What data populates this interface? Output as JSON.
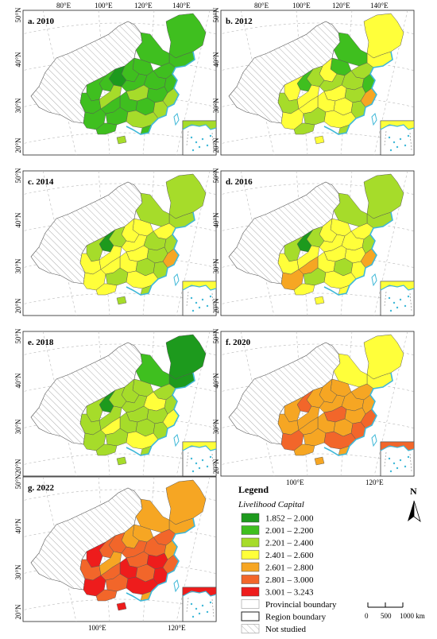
{
  "colors": {
    "water": "#3fb8d8",
    "not_studied_fill": "#ffffff",
    "hatch": "#9a9a9a",
    "boundary": "#555555",
    "graticule": "#b8b8b8"
  },
  "panels": [
    {
      "label": "a. 2010",
      "classes": [
        1,
        1,
        1,
        1,
        1,
        0,
        1,
        1,
        1,
        2,
        1,
        1,
        1,
        2,
        1,
        2,
        1,
        1,
        2,
        1,
        1,
        1,
        2,
        1,
        1,
        2
      ]
    },
    {
      "label": "b. 2012",
      "classes": [
        3,
        1,
        1,
        2,
        3,
        2,
        1,
        3,
        2,
        3,
        2,
        2,
        1,
        3,
        2,
        4,
        3,
        3,
        2,
        3,
        3,
        2,
        3,
        2,
        2,
        3
      ]
    },
    {
      "label": "c. 2014",
      "classes": [
        2,
        2,
        3,
        3,
        3,
        2,
        0,
        2,
        3,
        3,
        3,
        2,
        2,
        3,
        2,
        4,
        3,
        2,
        2,
        3,
        3,
        2,
        3,
        3,
        2,
        2
      ]
    },
    {
      "label": "d. 2016",
      "classes": [
        2,
        2,
        3,
        3,
        3,
        2,
        0,
        2,
        3,
        3,
        3,
        3,
        2,
        3,
        3,
        4,
        3,
        2,
        3,
        4,
        4,
        2,
        3,
        3,
        3,
        3
      ]
    },
    {
      "label": "e. 2018",
      "classes": [
        0,
        1,
        2,
        2,
        2,
        2,
        0,
        2,
        2,
        2,
        2,
        3,
        2,
        2,
        2,
        3,
        2,
        2,
        2,
        3,
        2,
        2,
        3,
        2,
        2,
        2
      ]
    },
    {
      "label": "f. 2020",
      "classes": [
        3,
        3,
        4,
        4,
        4,
        4,
        5,
        4,
        4,
        4,
        4,
        4,
        4,
        5,
        4,
        5,
        4,
        4,
        5,
        4,
        5,
        4,
        5,
        4,
        4,
        4
      ]
    },
    {
      "label": "g. 2022",
      "classes": [
        4,
        4,
        4,
        5,
        4,
        5,
        5,
        6,
        5,
        4,
        5,
        5,
        4,
        5,
        6,
        5,
        6,
        5,
        6,
        5,
        6,
        5,
        6,
        5,
        4,
        6
      ]
    }
  ],
  "axes": {
    "lon_top": [
      "80°E",
      "100°E",
      "120°E",
      "140°E"
    ],
    "lon_bottom": [
      "100°E",
      "120°E"
    ],
    "lat": [
      "50°N",
      "40°N",
      "30°N",
      "20°N"
    ]
  },
  "legend": {
    "title": "Legend",
    "subtitle": "Livelihood Capital",
    "classes": [
      {
        "label": "1.852 – 2.000",
        "color": "#1d9a1d"
      },
      {
        "label": "2.001 – 2.200",
        "color": "#3fbf1f"
      },
      {
        "label": "2.201 – 2.400",
        "color": "#a6dc2a"
      },
      {
        "label": "2.401 – 2.600",
        "color": "#ffff3a"
      },
      {
        "label": "2.601 – 2.800",
        "color": "#f6a623"
      },
      {
        "label": "2.801 – 3.000",
        "color": "#f2662a"
      },
      {
        "label": "3.001 – 3.243",
        "color": "#ee1c1c"
      }
    ],
    "provincial_label": "Provincial boundary",
    "region_label": "Region boundary",
    "not_studied_label": "Not studied"
  },
  "north_arrow": "N",
  "scale_bar": {
    "ticks": [
      "0",
      "500",
      "1000 km"
    ]
  }
}
